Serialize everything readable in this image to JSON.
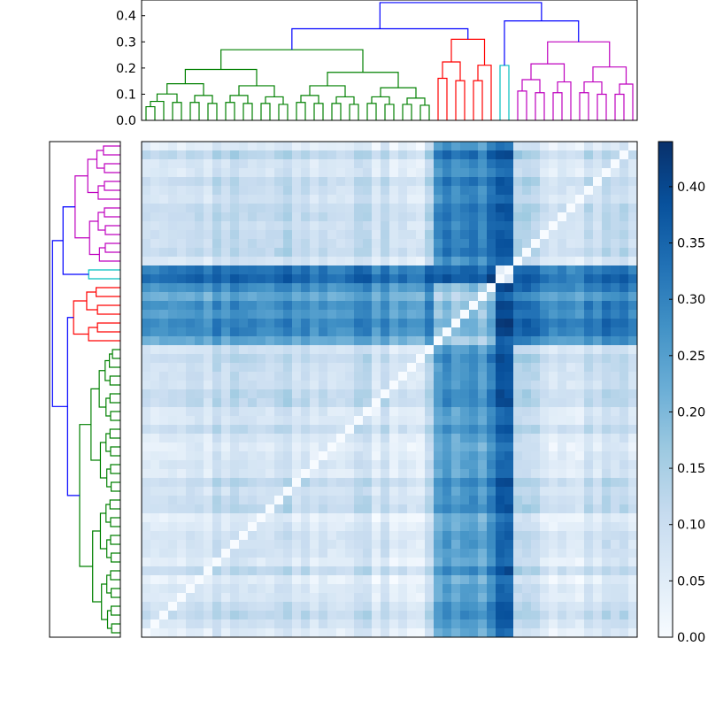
{
  "chart_data": [
    {
      "type": "dendrogram",
      "orientation": "top",
      "ylim": [
        0,
        0.46
      ],
      "yticks": [
        "0.0",
        "0.1",
        "0.2",
        "0.3",
        "0.4"
      ],
      "leaf_count": 56,
      "clusters": [
        {
          "color": "#008000",
          "leaves": 33,
          "merge_height": 0.27
        },
        {
          "color": "#ff0000",
          "leaves": 7,
          "merge_height": 0.31
        },
        {
          "color": "#00bfbf",
          "leaves": 2,
          "merge_height": 0.21
        },
        {
          "color": "#bf00bf",
          "leaves": 14,
          "merge_height": 0.3
        }
      ],
      "link_color": "#0000ff",
      "top_merges": [
        0.35,
        0.38,
        0.45
      ]
    },
    {
      "type": "dendrogram",
      "orientation": "left",
      "leaf_count": 56,
      "clusters_top_to_bottom": [
        {
          "color": "#bf00bf",
          "leaves": 14,
          "merge_height": 0.3
        },
        {
          "color": "#00bfbf",
          "leaves": 2,
          "merge_height": 0.21
        },
        {
          "color": "#ff0000",
          "leaves": 7,
          "merge_height": 0.31
        },
        {
          "color": "#008000",
          "leaves": 33,
          "merge_height": 0.27
        }
      ],
      "link_color": "#0000ff"
    },
    {
      "type": "heatmap",
      "rows": 56,
      "cols": 56,
      "colormap": "Blues",
      "vmin": 0,
      "vmax": 0.44,
      "diagonal_value": 0,
      "cluster_order_columns": [
        "green:33",
        "red:7",
        "cyan:2",
        "magenta:14"
      ],
      "mean_distance_blocks": {
        "green-green": 0.08,
        "green-red": 0.26,
        "green-cyan": 0.33,
        "green-magenta": 0.09,
        "red-red": 0.18,
        "red-cyan": 0.36,
        "red-magenta": 0.3,
        "cyan-cyan": 0.02,
        "cyan-magenta": 0.33,
        "magenta-magenta": 0.1
      }
    },
    {
      "type": "colorbar",
      "colormap": "Blues",
      "range": [
        0,
        0.44
      ],
      "ticks": [
        "0.00",
        "0.05",
        "0.10",
        "0.15",
        "0.20",
        "0.25",
        "0.30",
        "0.35",
        "0.40"
      ]
    }
  ]
}
